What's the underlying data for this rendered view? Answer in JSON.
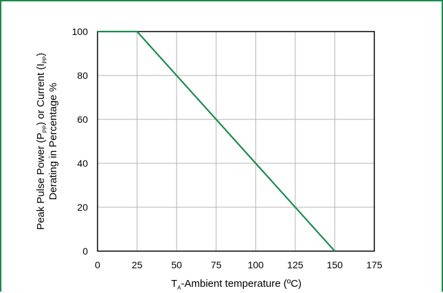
{
  "chart_data": {
    "type": "line",
    "x": [
      0,
      25,
      150
    ],
    "series": [
      {
        "values": [
          100,
          100,
          0
        ],
        "color": "#1a8a4a"
      }
    ],
    "xlim": [
      0,
      175
    ],
    "ylim": [
      0,
      100
    ],
    "x_ticks": [
      "0",
      "25",
      "50",
      "75",
      "100",
      "125",
      "150",
      "175"
    ],
    "y_ticks": [
      "0",
      "20",
      "40",
      "60",
      "80",
      "100"
    ],
    "x_tick_values": [
      0,
      25,
      50,
      75,
      100,
      125,
      150,
      175
    ],
    "y_tick_values": [
      0,
      20,
      40,
      60,
      80,
      100
    ],
    "grid": true,
    "xlabel": {
      "pre": "T",
      "sub": "A",
      "post": "-Ambient temperature (ºC)"
    },
    "ylabel_line1": {
      "a": "Peak Pulse Power (P",
      "sub1": "PP",
      "b": ") or Current (I",
      "sub2": "PP",
      "c": ")"
    },
    "ylabel_line2": "Derating in Percentage %"
  },
  "colors": {
    "frame": "#1a8a4a",
    "line": "#1a8a4a",
    "grid": "#b3b3b3",
    "axis": "#000000"
  }
}
